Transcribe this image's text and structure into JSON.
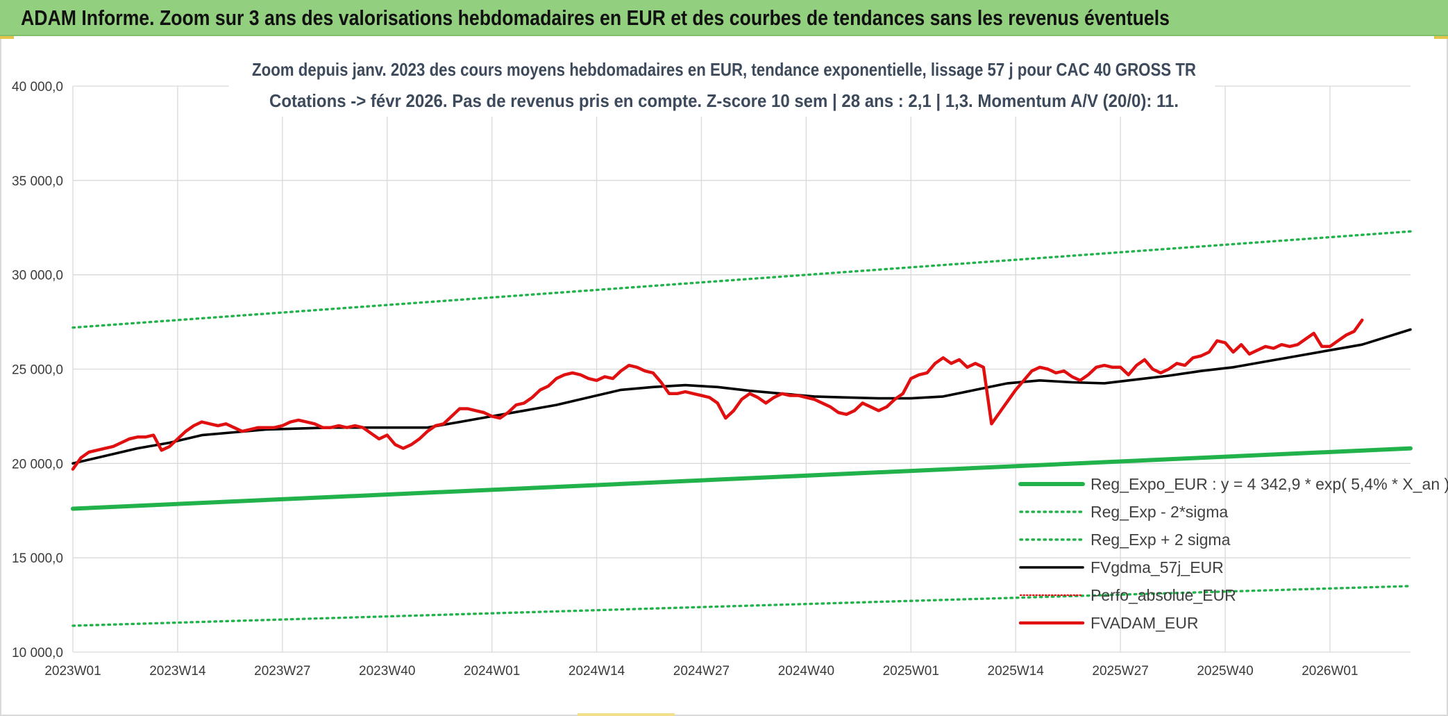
{
  "header": {
    "banner": "ADAM Informe. Zoom sur 3 ans des valorisations hebdomadaires en EUR et des courbes de tendances sans les revenus éventuels"
  },
  "colors": {
    "banner_bg": "#92cf7f",
    "trend": "#21b24b",
    "bands": "#21b24b",
    "ma": "#000000",
    "perf": "#e01010",
    "price": "#e01010"
  },
  "chart_data": {
    "type": "line",
    "title_lines": [
      "Zoom depuis janv. 2023 des cours moyens hebdomadaires en EUR, tendance exponentielle, lissage 57 j pour CAC 40 GROSS TR",
      "Cotations -> févr 2026. Pas de revenus pris en compte. Z-score 10 sem | 28 ans : 2,1 | 1,3. Momentum A/V (20/0): 11."
    ],
    "xlabel": "",
    "ylabel": "",
    "ylim": [
      10000,
      40000
    ],
    "y_ticks": [
      10000,
      15000,
      20000,
      25000,
      30000,
      35000,
      40000
    ],
    "y_tick_labels": [
      "10 000,0",
      "15 000,0",
      "20 000,0",
      "25 000,0",
      "30 000,0",
      "35 000,0",
      "40 000,0"
    ],
    "x_tick_labels": [
      "2023W01",
      "2023W14",
      "2023W27",
      "2023W40",
      "2024W01",
      "2024W14",
      "2024W27",
      "2024W40",
      "2025W01",
      "2025W14",
      "2025W27",
      "2025W40",
      "2026W01"
    ],
    "x_tick_weeks": [
      0,
      13,
      26,
      39,
      52,
      65,
      78,
      91,
      104,
      117,
      130,
      143,
      156
    ],
    "xlim_weeks": [
      0,
      166
    ],
    "grid": true,
    "legend_position": "bottom-right",
    "series": [
      {
        "name": "Reg_Expo_EUR : y = 4 342,9 * exp( 5,4% *  X_an )",
        "style": "trend",
        "points": [
          [
            0,
            17600
          ],
          [
            166,
            20800
          ]
        ]
      },
      {
        "name": "Reg_Exp - 2*sigma",
        "style": "band",
        "points": [
          [
            0,
            11400
          ],
          [
            166,
            13500
          ]
        ]
      },
      {
        "name": "Reg_Exp + 2 sigma",
        "style": "band",
        "points": [
          [
            0,
            27200
          ],
          [
            166,
            32300
          ]
        ]
      },
      {
        "name": "FVgdma_57j_EUR",
        "style": "ma",
        "points": [
          [
            0,
            20000
          ],
          [
            4,
            20400
          ],
          [
            8,
            20800
          ],
          [
            12,
            21100
          ],
          [
            16,
            21500
          ],
          [
            20,
            21650
          ],
          [
            24,
            21800
          ],
          [
            28,
            21850
          ],
          [
            32,
            21900
          ],
          [
            36,
            21900
          ],
          [
            40,
            21900
          ],
          [
            44,
            21900
          ],
          [
            48,
            22200
          ],
          [
            52,
            22500
          ],
          [
            56,
            22800
          ],
          [
            60,
            23100
          ],
          [
            64,
            23500
          ],
          [
            68,
            23900
          ],
          [
            72,
            24050
          ],
          [
            76,
            24150
          ],
          [
            80,
            24050
          ],
          [
            84,
            23850
          ],
          [
            88,
            23700
          ],
          [
            92,
            23550
          ],
          [
            96,
            23500
          ],
          [
            100,
            23450
          ],
          [
            104,
            23450
          ],
          [
            108,
            23550
          ],
          [
            112,
            23900
          ],
          [
            116,
            24250
          ],
          [
            120,
            24400
          ],
          [
            124,
            24300
          ],
          [
            128,
            24250
          ],
          [
            132,
            24450
          ],
          [
            136,
            24650
          ],
          [
            140,
            24900
          ],
          [
            144,
            25100
          ],
          [
            148,
            25400
          ],
          [
            152,
            25700
          ],
          [
            156,
            26000
          ],
          [
            160,
            26300
          ],
          [
            166,
            27100
          ]
        ]
      },
      {
        "name": "Perfo_absolue_EUR",
        "style": "perf",
        "points": []
      },
      {
        "name": "FVADAM_EUR",
        "style": "price",
        "points": [
          [
            0,
            19700
          ],
          [
            1,
            20300
          ],
          [
            2,
            20600
          ],
          [
            3,
            20700
          ],
          [
            4,
            20800
          ],
          [
            5,
            20900
          ],
          [
            6,
            21100
          ],
          [
            7,
            21300
          ],
          [
            8,
            21400
          ],
          [
            9,
            21400
          ],
          [
            10,
            21500
          ],
          [
            11,
            20700
          ],
          [
            12,
            20900
          ],
          [
            13,
            21300
          ],
          [
            14,
            21700
          ],
          [
            15,
            22000
          ],
          [
            16,
            22200
          ],
          [
            17,
            22100
          ],
          [
            18,
            22000
          ],
          [
            19,
            22100
          ],
          [
            20,
            21900
          ],
          [
            21,
            21700
          ],
          [
            22,
            21800
          ],
          [
            23,
            21900
          ],
          [
            24,
            21900
          ],
          [
            25,
            21900
          ],
          [
            26,
            22000
          ],
          [
            27,
            22200
          ],
          [
            28,
            22300
          ],
          [
            29,
            22200
          ],
          [
            30,
            22100
          ],
          [
            31,
            21900
          ],
          [
            32,
            21900
          ],
          [
            33,
            22000
          ],
          [
            34,
            21900
          ],
          [
            35,
            22000
          ],
          [
            36,
            21900
          ],
          [
            37,
            21600
          ],
          [
            38,
            21300
          ],
          [
            39,
            21500
          ],
          [
            40,
            21000
          ],
          [
            41,
            20800
          ],
          [
            42,
            21000
          ],
          [
            43,
            21300
          ],
          [
            44,
            21700
          ],
          [
            45,
            22000
          ],
          [
            46,
            22100
          ],
          [
            47,
            22500
          ],
          [
            48,
            22900
          ],
          [
            49,
            22900
          ],
          [
            50,
            22800
          ],
          [
            51,
            22700
          ],
          [
            52,
            22500
          ],
          [
            53,
            22400
          ],
          [
            54,
            22700
          ],
          [
            55,
            23100
          ],
          [
            56,
            23200
          ],
          [
            57,
            23500
          ],
          [
            58,
            23900
          ],
          [
            59,
            24100
          ],
          [
            60,
            24500
          ],
          [
            61,
            24700
          ],
          [
            62,
            24800
          ],
          [
            63,
            24700
          ],
          [
            64,
            24500
          ],
          [
            65,
            24400
          ],
          [
            66,
            24600
          ],
          [
            67,
            24500
          ],
          [
            68,
            24900
          ],
          [
            69,
            25200
          ],
          [
            70,
            25100
          ],
          [
            71,
            24900
          ],
          [
            72,
            24800
          ],
          [
            73,
            24300
          ],
          [
            74,
            23700
          ],
          [
            75,
            23700
          ],
          [
            76,
            23800
          ],
          [
            77,
            23700
          ],
          [
            78,
            23600
          ],
          [
            79,
            23500
          ],
          [
            80,
            23200
          ],
          [
            81,
            22400
          ],
          [
            82,
            22800
          ],
          [
            83,
            23400
          ],
          [
            84,
            23700
          ],
          [
            85,
            23500
          ],
          [
            86,
            23200
          ],
          [
            87,
            23500
          ],
          [
            88,
            23700
          ],
          [
            89,
            23600
          ],
          [
            90,
            23600
          ],
          [
            91,
            23500
          ],
          [
            92,
            23400
          ],
          [
            93,
            23200
          ],
          [
            94,
            23000
          ],
          [
            95,
            22700
          ],
          [
            96,
            22600
          ],
          [
            97,
            22800
          ],
          [
            98,
            23200
          ],
          [
            99,
            23000
          ],
          [
            100,
            22800
          ],
          [
            101,
            23000
          ],
          [
            102,
            23400
          ],
          [
            103,
            23700
          ],
          [
            104,
            24500
          ],
          [
            105,
            24700
          ],
          [
            106,
            24800
          ],
          [
            107,
            25300
          ],
          [
            108,
            25600
          ],
          [
            109,
            25300
          ],
          [
            110,
            25500
          ],
          [
            111,
            25100
          ],
          [
            112,
            25300
          ],
          [
            113,
            25100
          ],
          [
            114,
            22100
          ],
          [
            115,
            22700
          ],
          [
            116,
            23300
          ],
          [
            117,
            23900
          ],
          [
            118,
            24400
          ],
          [
            119,
            24900
          ],
          [
            120,
            25100
          ],
          [
            121,
            25000
          ],
          [
            122,
            24800
          ],
          [
            123,
            24900
          ],
          [
            124,
            24600
          ],
          [
            125,
            24400
          ],
          [
            126,
            24700
          ],
          [
            127,
            25100
          ],
          [
            128,
            25200
          ],
          [
            129,
            25100
          ],
          [
            130,
            25100
          ],
          [
            131,
            24700
          ],
          [
            132,
            25200
          ],
          [
            133,
            25500
          ],
          [
            134,
            25000
          ],
          [
            135,
            24800
          ],
          [
            136,
            25000
          ],
          [
            137,
            25300
          ],
          [
            138,
            25200
          ],
          [
            139,
            25600
          ],
          [
            140,
            25700
          ],
          [
            141,
            25900
          ],
          [
            142,
            26500
          ],
          [
            143,
            26400
          ],
          [
            144,
            25900
          ],
          [
            145,
            26300
          ],
          [
            146,
            25800
          ],
          [
            147,
            26000
          ],
          [
            148,
            26200
          ],
          [
            149,
            26100
          ],
          [
            150,
            26300
          ],
          [
            151,
            26200
          ],
          [
            152,
            26300
          ],
          [
            153,
            26600
          ],
          [
            154,
            26900
          ],
          [
            155,
            26200
          ],
          [
            156,
            26200
          ],
          [
            157,
            26500
          ],
          [
            158,
            26800
          ],
          [
            159,
            27000
          ],
          [
            160,
            27600
          ]
        ]
      }
    ]
  }
}
